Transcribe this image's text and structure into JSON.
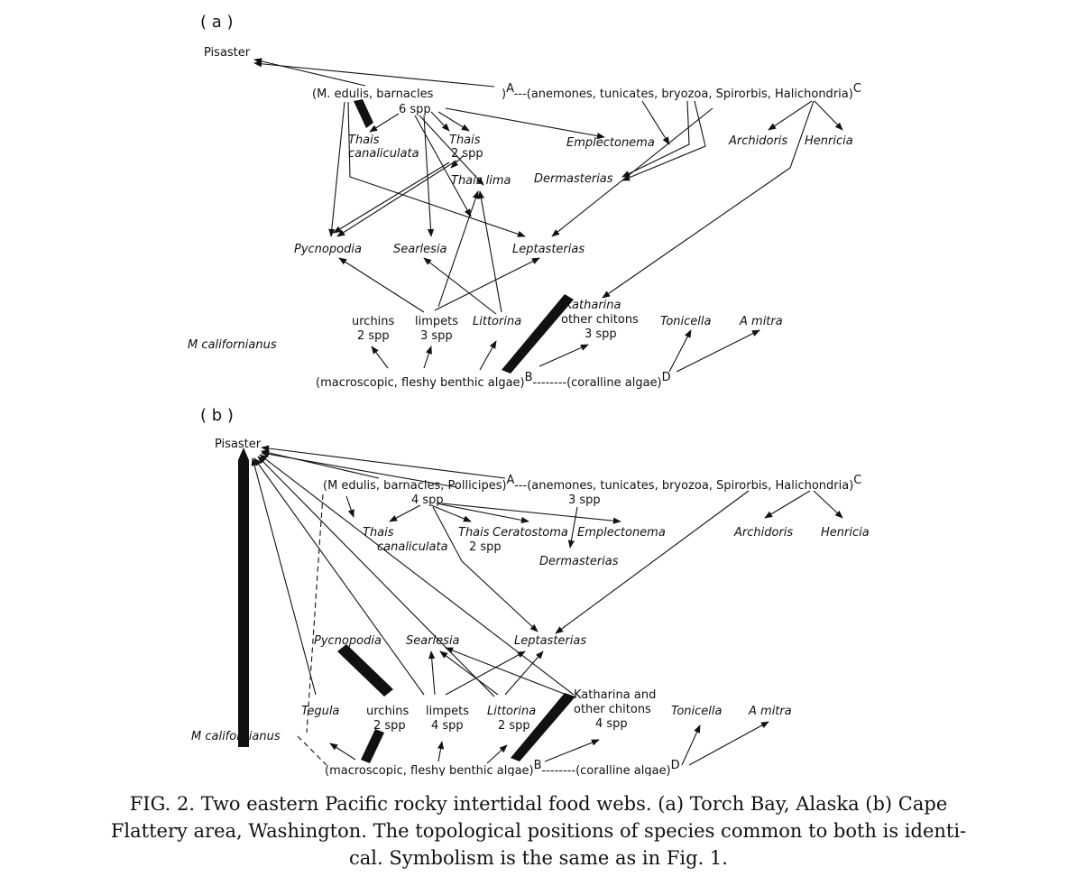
{
  "panel_a": {
    "label": "( a )",
    "nodes": {
      "pisaster": "Pisaster",
      "prey_open": "(",
      "medulis": "M. edulis",
      "barnacles": ", barnacles",
      "prey_close": ")",
      "six_spp": "6 spp",
      "sup_a": "A",
      "dash_a": "---",
      "sessile_open": "(anemones, tunicates, bryozoa, ",
      "spirorbis": "Spirorbis",
      "comma": ", ",
      "halichondria": "Halichondria",
      "sessile_close": ")",
      "sup_c": "C",
      "thais_can_1": "Thais",
      "thais_can_2": "canaliculata",
      "thais_2spp_1": "Thais",
      "thais_2spp_2": "2 spp",
      "emplectonema": "Emplectonema",
      "archidoris": "Archidoris",
      "henricia": "Henricia",
      "thais_lima": "Thais lima",
      "dermasterias": "Dermasterias",
      "pycnopodia": "Pycnopodia",
      "searlesia": "Searlesia",
      "leptasterias": "Leptasterias",
      "katharina": "Katharina",
      "other_chitons": "other chitons",
      "chitons_spp": "3 spp",
      "urchins": "urchins",
      "urchins_spp": "2 spp",
      "limpets": "limpets",
      "limpets_spp": "3 spp",
      "littorina": "Littorina",
      "tonicella": "Tonicella",
      "amitra": "A mitra",
      "mcalifornianus": "M californianus",
      "algae": "(macroscopic, fleshy benthic algae)",
      "sup_b": "B",
      "dash_b": "--------",
      "coralline": "(coralline algae)",
      "sup_d": "D"
    }
  },
  "panel_b": {
    "label": "( b )",
    "nodes": {
      "pisaster": "Pisaster",
      "prey_open": "(",
      "medulis": "M edulis",
      "barnacles": ", barnacles, Pollicipes)",
      "four_spp": "4 spp",
      "sup_a": "A",
      "dash_a": "---",
      "sessile_open": "(anemones, tunicates, bryozoa, ",
      "spirorbis": "Spirorbis",
      "comma": ", ",
      "halichondria": "Halichondria",
      "sessile_close": ")",
      "sup_c": "C",
      "sessile_spp": "3 spp",
      "thais_can_1": "Thais",
      "thais_can_2": "canaliculata",
      "thais_2spp_1": "Thais",
      "thais_2spp_2": "2 spp",
      "ceratostoma": "Ceratostoma",
      "emplectonema": "Emplectonema",
      "archidoris": "Archidoris",
      "henricia": "Henricia",
      "dermasterias": "Dermasterias",
      "pycnopodia": "Pycnopodia",
      "searlesia": "Searlesia",
      "leptasterias": "Leptasterias",
      "katharina": "Katharina",
      "katharina_and": " and",
      "other_chitons": "other chitons",
      "chitons_spp": "4 spp",
      "tegula": "Tegula",
      "urchins": "urchins",
      "urchins_spp": "2 spp",
      "limpets": "limpets",
      "limpets_spp": "4 spp",
      "littorina": "Littorina",
      "littorina_spp": "2 spp",
      "tonicella": "Tonicella",
      "amitra": "A mitra",
      "mcalifornianus": "M californianus",
      "algae": "(macroscopic, fleshy benthic algae)",
      "sup_b": "B",
      "dash_b": "--------",
      "coralline": "(coralline algae)",
      "sup_d": "D"
    }
  },
  "caption": {
    "line1": "FIG. 2. Two eastern Pacific rocky intertidal food webs. (a) Torch Bay, Alaska (b) Cape",
    "line2": "Flattery area, Washington. The topological positions of species common to both is identi-",
    "line3": "cal. Symbolism is the same as in Fig. 1."
  }
}
